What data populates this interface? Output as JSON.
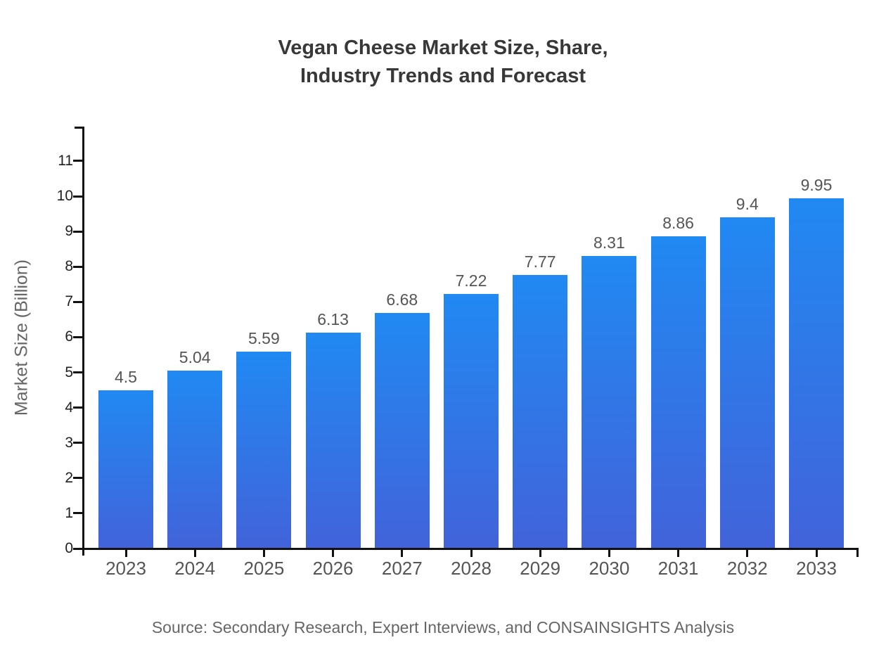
{
  "chart_data": {
    "type": "bar",
    "title_lines": [
      "Vegan Cheese Market Size, Share,",
      "Industry Trends and Forecast"
    ],
    "title": "Vegan Cheese Market Size, Share, Industry Trends and Forecast",
    "categories": [
      "2023",
      "2024",
      "2025",
      "2026",
      "2027",
      "2028",
      "2029",
      "2030",
      "2031",
      "2032",
      "2033"
    ],
    "values": [
      4.5,
      5.04,
      5.59,
      6.13,
      6.68,
      7.22,
      7.77,
      8.31,
      8.86,
      9.4,
      9.95
    ],
    "value_labels": [
      "4.5",
      "5.04",
      "5.59",
      "6.13",
      "6.68",
      "7.22",
      "7.77",
      "8.31",
      "8.86",
      "9.4",
      "9.95"
    ],
    "xlabel": "",
    "ylabel": "Market Size (Billion)",
    "yticks": [
      0,
      1,
      2,
      3,
      4,
      5,
      6,
      7,
      8,
      9,
      10,
      11
    ],
    "ylim": [
      0,
      11.97
    ],
    "grid": false,
    "legend_position": "none",
    "source_note": "Source: Secondary Research, Expert Interviews, and CONSAINSIGHTS Analysis",
    "colors": {
      "bar_gradient_top": "#2189f2",
      "bar_gradient_bottom": "#4263da",
      "axis": "#111111",
      "tick_label": "#1f1f1f",
      "category_label": "#555555",
      "value_label": "#555555",
      "title": "#383838",
      "axis_title": "#666666",
      "source": "#666666"
    }
  }
}
